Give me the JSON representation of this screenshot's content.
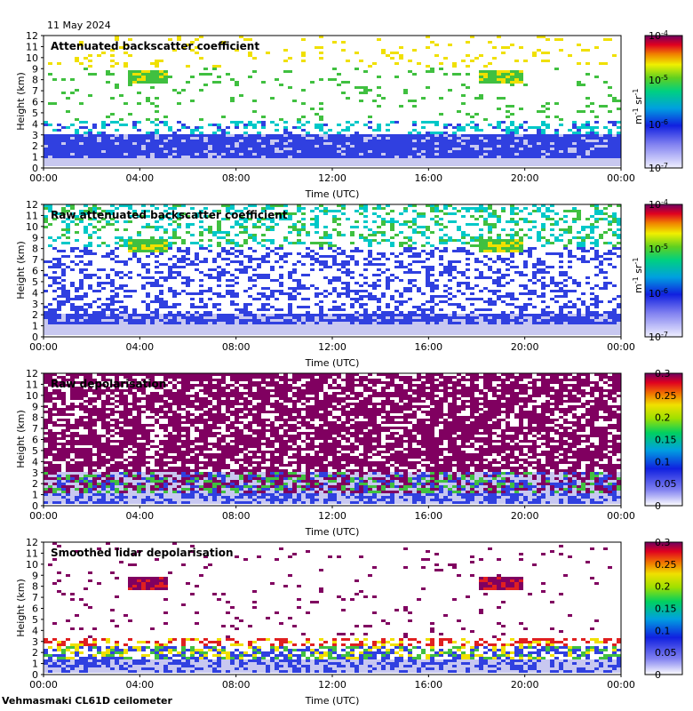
{
  "header": {
    "date": "11 May 2024"
  },
  "footer": {
    "site_label": "Vehmasmaki CL61D ceilometer"
  },
  "colors": {
    "clear": "#ffffff",
    "low": "#c8c8f0",
    "blue": "#3040e0",
    "cyan": "#00c8c8",
    "green": "#40c040",
    "yellow": "#f0e000",
    "red": "#e02020",
    "purple": "#800060"
  },
  "chart_data": [
    {
      "type": "heatmap",
      "title": "Attenuated backscatter coefficient",
      "xlabel": "Time (UTC)",
      "ylabel": "Height (km)",
      "x_ticks": [
        "00:00",
        "04:00",
        "08:00",
        "12:00",
        "16:00",
        "20:00",
        "00:00"
      ],
      "y_ticks": [
        "0",
        "1",
        "2",
        "3",
        "4",
        "5",
        "6",
        "7",
        "8",
        "9",
        "10",
        "11",
        "12"
      ],
      "ylim": [
        0,
        12
      ],
      "xlim_hours": [
        0,
        24
      ],
      "colorbar": {
        "scale": "log",
        "ticks": [
          "10-7",
          "10-6",
          "10-5",
          "10-4"
        ],
        "unit": "m-1 sr-1"
      },
      "colorbar_ticks": [
        {
          "base": "10",
          "exp": "-4"
        },
        {
          "base": "10",
          "exp": "-5"
        },
        {
          "base": "10",
          "exp": "-6"
        },
        {
          "base": "10",
          "exp": "-7"
        }
      ],
      "unit_label": {
        "m": "m",
        "m_exp": "-1",
        "sr": "sr",
        "sr_exp": "-1"
      },
      "features": "boundary layer 0-3 km (blue), upper 3-12 km sparse speckle, elevated aerosol layers near 8 km at 03-05 UTC and 18-20 UTC"
    },
    {
      "type": "heatmap",
      "title": "Raw attenuated backscatter coefficient",
      "xlabel": "Time (UTC)",
      "ylabel": "Height (km)",
      "x_ticks": [
        "00:00",
        "04:00",
        "08:00",
        "12:00",
        "16:00",
        "20:00",
        "00:00"
      ],
      "y_ticks": [
        "0",
        "1",
        "2",
        "3",
        "4",
        "5",
        "6",
        "7",
        "8",
        "9",
        "10",
        "11",
        "12"
      ],
      "ylim": [
        0,
        12
      ],
      "xlim_hours": [
        0,
        24
      ],
      "colorbar": {
        "scale": "log",
        "ticks": [
          "10-7",
          "10-6",
          "10-5",
          "10-4"
        ],
        "unit": "m-1 sr-1"
      },
      "colorbar_ticks": [
        {
          "base": "10",
          "exp": "-4"
        },
        {
          "base": "10",
          "exp": "-5"
        },
        {
          "base": "10",
          "exp": "-6"
        },
        {
          "base": "10",
          "exp": "-7"
        }
      ],
      "unit_label": {
        "m": "m",
        "m_exp": "-1",
        "sr": "sr",
        "sr_exp": "-1"
      }
    },
    {
      "type": "heatmap",
      "title": "Raw depolarisation",
      "xlabel": "Time (UTC)",
      "ylabel": "Height (km)",
      "x_ticks": [
        "00:00",
        "04:00",
        "08:00",
        "12:00",
        "16:00",
        "20:00",
        "00:00"
      ],
      "y_ticks": [
        "0",
        "1",
        "2",
        "3",
        "4",
        "5",
        "6",
        "7",
        "8",
        "9",
        "10",
        "11",
        "12"
      ],
      "ylim": [
        0,
        12
      ],
      "xlim_hours": [
        0,
        24
      ],
      "colorbar": {
        "scale": "linear",
        "range": [
          0,
          0.3
        ],
        "ticks": [
          "0.3",
          "0.25",
          "0.2",
          "0.15",
          "0.1",
          "0.05",
          "0"
        ]
      }
    },
    {
      "type": "heatmap",
      "title": "Smoothed lidar depolarisation",
      "xlabel": "Time (UTC)",
      "ylabel": "Height (km)",
      "x_ticks": [
        "00:00",
        "04:00",
        "08:00",
        "12:00",
        "16:00",
        "20:00",
        "00:00"
      ],
      "y_ticks": [
        "0",
        "1",
        "2",
        "3",
        "4",
        "5",
        "6",
        "7",
        "8",
        "9",
        "10",
        "11",
        "12"
      ],
      "ylim": [
        0,
        12
      ],
      "xlim_hours": [
        0,
        24
      ],
      "colorbar": {
        "scale": "linear",
        "range": [
          0,
          0.3
        ],
        "ticks": [
          "0.3",
          "0.25",
          "0.2",
          "0.15",
          "0.1",
          "0.05",
          "0"
        ]
      }
    }
  ]
}
